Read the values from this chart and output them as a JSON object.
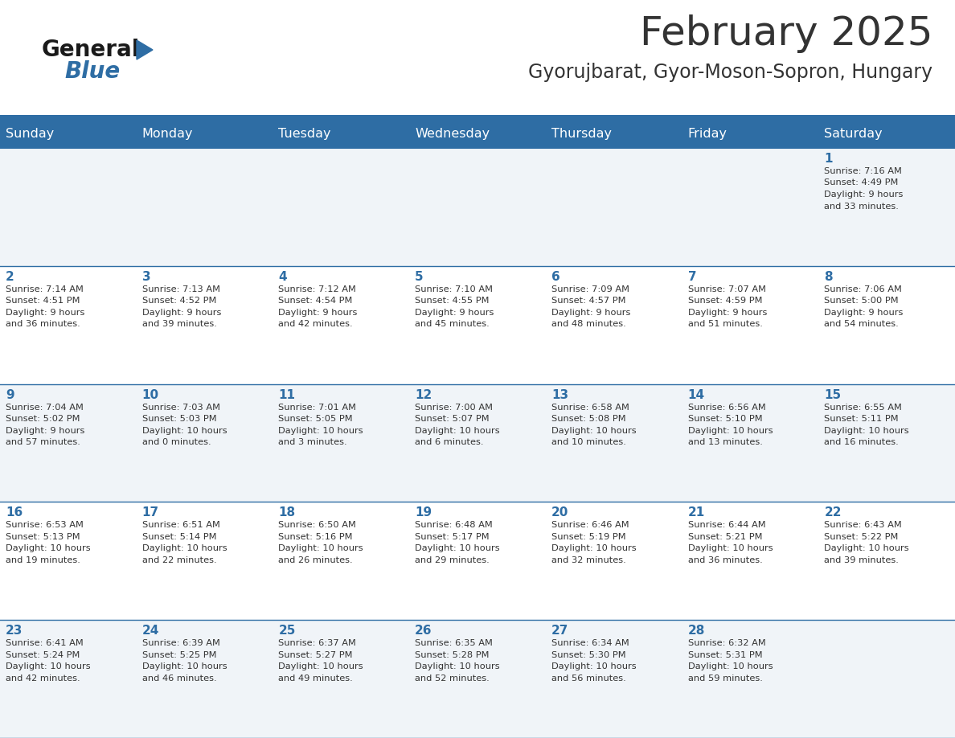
{
  "title": "February 2025",
  "subtitle": "Gyorujbarat, Gyor-Moson-Sopron, Hungary",
  "header_bg": "#2E6DA4",
  "header_text": "#FFFFFF",
  "day_names": [
    "Sunday",
    "Monday",
    "Tuesday",
    "Wednesday",
    "Thursday",
    "Friday",
    "Saturday"
  ],
  "bg_color": "#FFFFFF",
  "cell_bg_even": "#F0F4F8",
  "cell_bg_odd": "#FFFFFF",
  "separator_color": "#2E6DA4",
  "date_color": "#2E6DA4",
  "text_color": "#333333",
  "logo_color_general": "#1a1a1a",
  "logo_color_blue": "#2E6DA4",
  "days_data": [
    {
      "day": 1,
      "col": 6,
      "row": 0,
      "sunrise": "7:16 AM",
      "sunset": "4:49 PM",
      "daylight_h": "9 hours",
      "daylight_m": "and 33 minutes."
    },
    {
      "day": 2,
      "col": 0,
      "row": 1,
      "sunrise": "7:14 AM",
      "sunset": "4:51 PM",
      "daylight_h": "9 hours",
      "daylight_m": "and 36 minutes."
    },
    {
      "day": 3,
      "col": 1,
      "row": 1,
      "sunrise": "7:13 AM",
      "sunset": "4:52 PM",
      "daylight_h": "9 hours",
      "daylight_m": "and 39 minutes."
    },
    {
      "day": 4,
      "col": 2,
      "row": 1,
      "sunrise": "7:12 AM",
      "sunset": "4:54 PM",
      "daylight_h": "9 hours",
      "daylight_m": "and 42 minutes."
    },
    {
      "day": 5,
      "col": 3,
      "row": 1,
      "sunrise": "7:10 AM",
      "sunset": "4:55 PM",
      "daylight_h": "9 hours",
      "daylight_m": "and 45 minutes."
    },
    {
      "day": 6,
      "col": 4,
      "row": 1,
      "sunrise": "7:09 AM",
      "sunset": "4:57 PM",
      "daylight_h": "9 hours",
      "daylight_m": "and 48 minutes."
    },
    {
      "day": 7,
      "col": 5,
      "row": 1,
      "sunrise": "7:07 AM",
      "sunset": "4:59 PM",
      "daylight_h": "9 hours",
      "daylight_m": "and 51 minutes."
    },
    {
      "day": 8,
      "col": 6,
      "row": 1,
      "sunrise": "7:06 AM",
      "sunset": "5:00 PM",
      "daylight_h": "9 hours",
      "daylight_m": "and 54 minutes."
    },
    {
      "day": 9,
      "col": 0,
      "row": 2,
      "sunrise": "7:04 AM",
      "sunset": "5:02 PM",
      "daylight_h": "9 hours",
      "daylight_m": "and 57 minutes."
    },
    {
      "day": 10,
      "col": 1,
      "row": 2,
      "sunrise": "7:03 AM",
      "sunset": "5:03 PM",
      "daylight_h": "10 hours",
      "daylight_m": "and 0 minutes."
    },
    {
      "day": 11,
      "col": 2,
      "row": 2,
      "sunrise": "7:01 AM",
      "sunset": "5:05 PM",
      "daylight_h": "10 hours",
      "daylight_m": "and 3 minutes."
    },
    {
      "day": 12,
      "col": 3,
      "row": 2,
      "sunrise": "7:00 AM",
      "sunset": "5:07 PM",
      "daylight_h": "10 hours",
      "daylight_m": "and 6 minutes."
    },
    {
      "day": 13,
      "col": 4,
      "row": 2,
      "sunrise": "6:58 AM",
      "sunset": "5:08 PM",
      "daylight_h": "10 hours",
      "daylight_m": "and 10 minutes."
    },
    {
      "day": 14,
      "col": 5,
      "row": 2,
      "sunrise": "6:56 AM",
      "sunset": "5:10 PM",
      "daylight_h": "10 hours",
      "daylight_m": "and 13 minutes."
    },
    {
      "day": 15,
      "col": 6,
      "row": 2,
      "sunrise": "6:55 AM",
      "sunset": "5:11 PM",
      "daylight_h": "10 hours",
      "daylight_m": "and 16 minutes."
    },
    {
      "day": 16,
      "col": 0,
      "row": 3,
      "sunrise": "6:53 AM",
      "sunset": "5:13 PM",
      "daylight_h": "10 hours",
      "daylight_m": "and 19 minutes."
    },
    {
      "day": 17,
      "col": 1,
      "row": 3,
      "sunrise": "6:51 AM",
      "sunset": "5:14 PM",
      "daylight_h": "10 hours",
      "daylight_m": "and 22 minutes."
    },
    {
      "day": 18,
      "col": 2,
      "row": 3,
      "sunrise": "6:50 AM",
      "sunset": "5:16 PM",
      "daylight_h": "10 hours",
      "daylight_m": "and 26 minutes."
    },
    {
      "day": 19,
      "col": 3,
      "row": 3,
      "sunrise": "6:48 AM",
      "sunset": "5:17 PM",
      "daylight_h": "10 hours",
      "daylight_m": "and 29 minutes."
    },
    {
      "day": 20,
      "col": 4,
      "row": 3,
      "sunrise": "6:46 AM",
      "sunset": "5:19 PM",
      "daylight_h": "10 hours",
      "daylight_m": "and 32 minutes."
    },
    {
      "day": 21,
      "col": 5,
      "row": 3,
      "sunrise": "6:44 AM",
      "sunset": "5:21 PM",
      "daylight_h": "10 hours",
      "daylight_m": "and 36 minutes."
    },
    {
      "day": 22,
      "col": 6,
      "row": 3,
      "sunrise": "6:43 AM",
      "sunset": "5:22 PM",
      "daylight_h": "10 hours",
      "daylight_m": "and 39 minutes."
    },
    {
      "day": 23,
      "col": 0,
      "row": 4,
      "sunrise": "6:41 AM",
      "sunset": "5:24 PM",
      "daylight_h": "10 hours",
      "daylight_m": "and 42 minutes."
    },
    {
      "day": 24,
      "col": 1,
      "row": 4,
      "sunrise": "6:39 AM",
      "sunset": "5:25 PM",
      "daylight_h": "10 hours",
      "daylight_m": "and 46 minutes."
    },
    {
      "day": 25,
      "col": 2,
      "row": 4,
      "sunrise": "6:37 AM",
      "sunset": "5:27 PM",
      "daylight_h": "10 hours",
      "daylight_m": "and 49 minutes."
    },
    {
      "day": 26,
      "col": 3,
      "row": 4,
      "sunrise": "6:35 AM",
      "sunset": "5:28 PM",
      "daylight_h": "10 hours",
      "daylight_m": "and 52 minutes."
    },
    {
      "day": 27,
      "col": 4,
      "row": 4,
      "sunrise": "6:34 AM",
      "sunset": "5:30 PM",
      "daylight_h": "10 hours",
      "daylight_m": "and 56 minutes."
    },
    {
      "day": 28,
      "col": 5,
      "row": 4,
      "sunrise": "6:32 AM",
      "sunset": "5:31 PM",
      "daylight_h": "10 hours",
      "daylight_m": "and 59 minutes."
    }
  ]
}
